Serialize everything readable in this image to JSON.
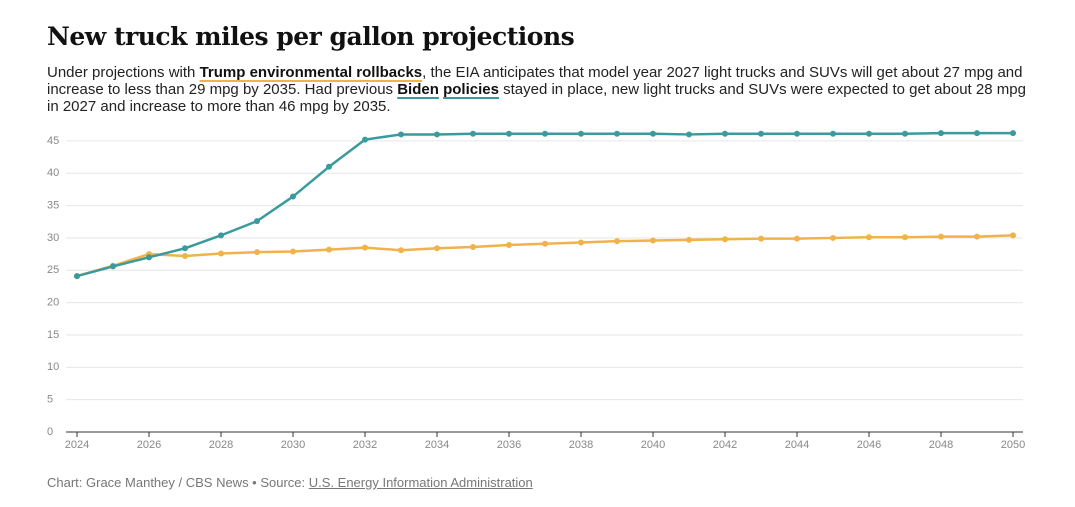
{
  "chart_data": {
    "type": "line",
    "title": "New truck miles per gallon projections",
    "subtitle": [
      "Under projections with ",
      "Trump environmental rollbacks",
      ", the EIA anticipates that model year 2027 light trucks and SUVs will get about 27 mpg and increase to less than 29 mpg by 2035. Had previous ",
      "Biden",
      "policies",
      " stayed in place, new light trucks and SUVs were expected to get about 28 mpg in 2027 and increase to more than 46 mpg by 2035."
    ],
    "footer": [
      "Chart: Grace Manthey / CBS News • Source: ",
      "U.S. Energy Information Administration"
    ],
    "x": [
      2024,
      2025,
      2026,
      2027,
      2028,
      2029,
      2030,
      2031,
      2032,
      2033,
      2034,
      2035,
      2036,
      2037,
      2038,
      2039,
      2040,
      2041,
      2042,
      2043,
      2044,
      2045,
      2046,
      2047,
      2048,
      2049,
      2050
    ],
    "series": [
      {
        "color": "#3a9a9c",
        "values": [
          24.1,
          25.6,
          27.0,
          28.4,
          30.4,
          32.6,
          36.4,
          41.0,
          45.2,
          46.0,
          46.0,
          46.1,
          46.1,
          46.1,
          46.1,
          46.1,
          46.1,
          46.0,
          46.1,
          46.1,
          46.1,
          46.1,
          46.1,
          46.1,
          46.2,
          46.2,
          46.2
        ]
      },
      {
        "color": "#f0b24b",
        "values": [
          24.1,
          25.7,
          27.5,
          27.2,
          27.6,
          27.8,
          27.9,
          28.2,
          28.5,
          28.1,
          28.4,
          28.6,
          28.9,
          29.1,
          29.3,
          29.5,
          29.6,
          29.7,
          29.8,
          29.9,
          29.9,
          30.0,
          30.1,
          30.1,
          30.2,
          30.2,
          30.4
        ]
      }
    ],
    "xlim": [
      2024,
      2050
    ],
    "xticks": [
      2024,
      2026,
      2028,
      2030,
      2032,
      2034,
      2036,
      2038,
      2040,
      2042,
      2044,
      2046,
      2048,
      2050
    ],
    "ylim": [
      0,
      48
    ],
    "yticks": [
      0,
      5,
      10,
      15,
      20,
      25,
      30,
      35,
      40,
      45
    ],
    "grid": true
  }
}
